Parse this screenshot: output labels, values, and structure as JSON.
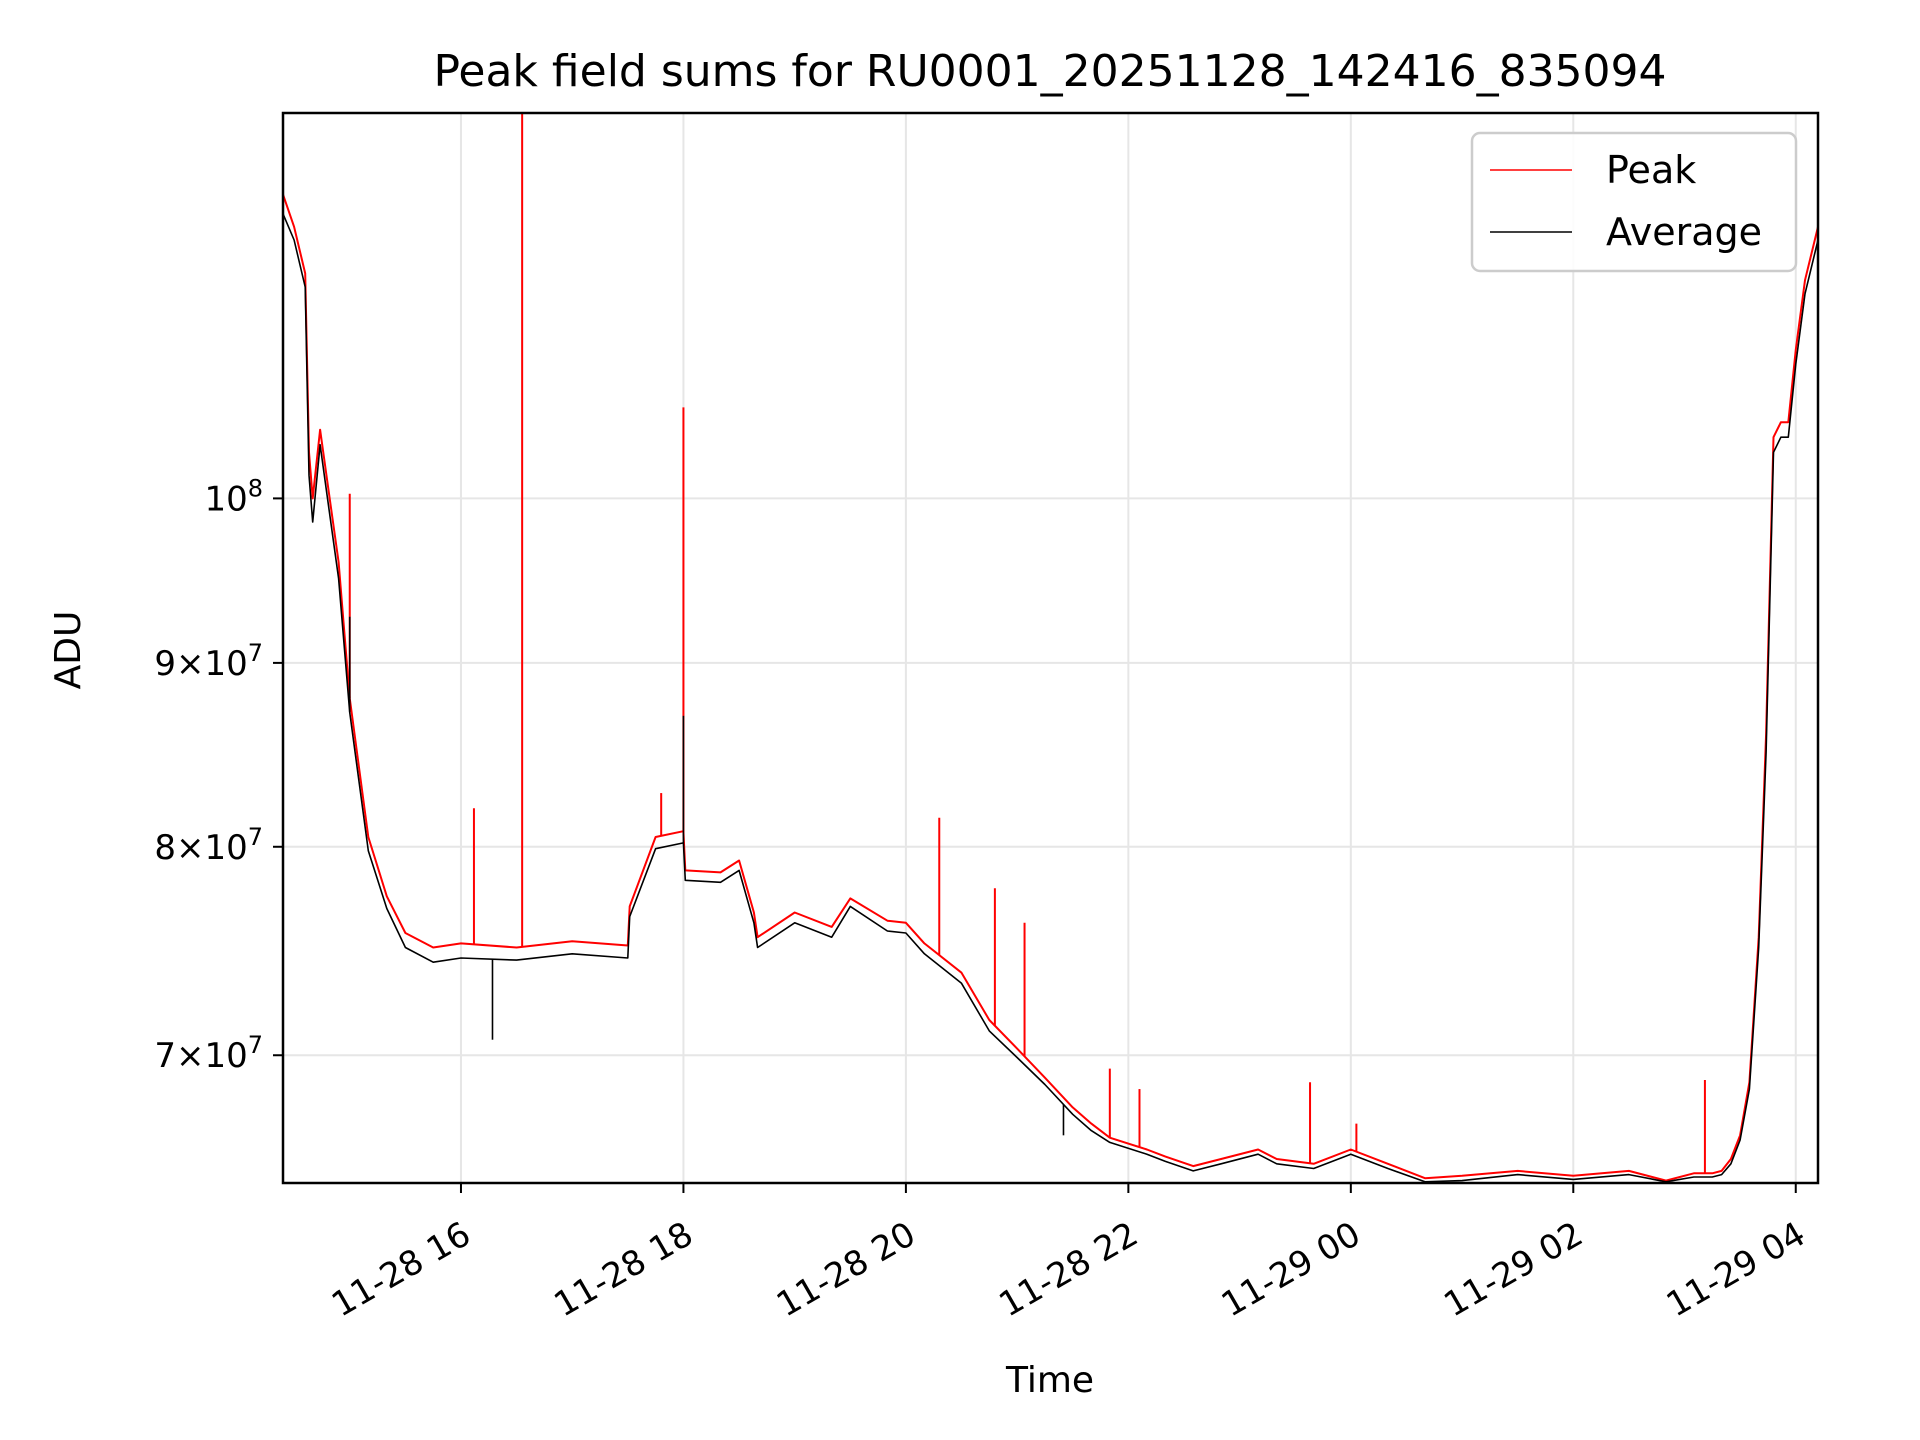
{
  "chart_data": {
    "type": "line",
    "title": "Peak field sums for RU0001_20251128_142416_835094",
    "xlabel": "Time",
    "ylabel": "ADU",
    "yscale": "log",
    "ylim": [
      64500000,
      128000000
    ],
    "xlim": [
      "2025-11-28 14:24",
      "2025-11-29 04:12"
    ],
    "x_ticks": [
      "2025-11-28 16:00",
      "2025-11-28 18:00",
      "2025-11-28 20:00",
      "2025-11-28 22:00",
      "2025-11-29 00:00",
      "2025-11-29 02:00",
      "2025-11-29 04:00"
    ],
    "x_tick_labels": [
      "11-28 16",
      "11-28 18",
      "11-28 20",
      "11-28 22",
      "11-29 00",
      "11-29 02",
      "11-29 04"
    ],
    "y_ticks": [
      {
        "value": 70000000,
        "mantissa": "7",
        "exp": "7"
      },
      {
        "value": 80000000,
        "mantissa": "8",
        "exp": "7"
      },
      {
        "value": 90000000,
        "mantissa": "9",
        "exp": "7"
      },
      {
        "value": 100000000,
        "mantissa": "",
        "exp": "8"
      }
    ],
    "grid": true,
    "legend_position": "top-right",
    "series": [
      {
        "name": "Peak",
        "color": "#ff0000",
        "x": [
          "2025-11-28 14:24",
          "2025-11-28 14:30",
          "2025-11-28 14:36",
          "2025-11-28 14:38",
          "2025-11-28 14:40",
          "2025-11-28 14:44",
          "2025-11-28 14:48",
          "2025-11-28 14:54",
          "2025-11-28 15:00",
          "2025-11-28 15:10",
          "2025-11-28 15:20",
          "2025-11-28 15:30",
          "2025-11-28 15:45",
          "2025-11-28 16:00",
          "2025-11-28 16:30",
          "2025-11-28 17:00",
          "2025-11-28 17:30",
          "2025-11-28 17:31",
          "2025-11-28 17:45",
          "2025-11-28 18:00",
          "2025-11-28 18:01",
          "2025-11-28 18:20",
          "2025-11-28 18:30",
          "2025-11-28 18:38",
          "2025-11-28 18:40",
          "2025-11-28 19:00",
          "2025-11-28 19:20",
          "2025-11-28 19:30",
          "2025-11-28 19:50",
          "2025-11-28 20:00",
          "2025-11-28 20:10",
          "2025-11-28 20:30",
          "2025-11-28 20:45",
          "2025-11-28 21:00",
          "2025-11-28 21:15",
          "2025-11-28 21:30",
          "2025-11-28 21:40",
          "2025-11-28 21:50",
          "2025-11-28 22:10",
          "2025-11-28 22:20",
          "2025-11-28 22:35",
          "2025-11-28 22:50",
          "2025-11-28 23:10",
          "2025-11-28 23:20",
          "2025-11-28 23:40",
          "2025-11-29 00:00",
          "2025-11-29 00:20",
          "2025-11-29 00:40",
          "2025-11-29 01:00",
          "2025-11-29 01:30",
          "2025-11-29 02:00",
          "2025-11-29 02:30",
          "2025-11-29 02:50",
          "2025-11-29 03:05",
          "2025-11-29 03:15",
          "2025-11-29 03:20",
          "2025-11-29 03:25",
          "2025-11-29 03:30",
          "2025-11-29 03:35",
          "2025-11-29 03:40",
          "2025-11-29 03:44",
          "2025-11-29 03:48",
          "2025-11-29 03:52",
          "2025-11-29 03:56",
          "2025-11-29 04:00",
          "2025-11-29 04:05",
          "2025-11-29 04:12"
        ],
        "y": [
          121500000,
          119000000,
          115500000,
          103000000,
          100000000,
          104500000,
          101000000,
          96000000,
          88000000,
          80500000,
          77500000,
          75700000,
          75000000,
          75200000,
          75000000,
          75300000,
          75100000,
          77000000,
          80500000,
          80800000,
          78800000,
          78700000,
          79300000,
          76700000,
          75500000,
          76700000,
          76000000,
          77400000,
          76300000,
          76200000,
          75200000,
          73800000,
          71600000,
          70300000,
          69000000,
          67700000,
          67000000,
          66400000,
          65900000,
          65600000,
          65200000,
          65500000,
          65900000,
          65500000,
          65300000,
          65900000,
          65300000,
          64700000,
          64800000,
          65000000,
          64800000,
          65000000,
          64600000,
          64900000,
          64900000,
          65000000,
          65500000,
          66500000,
          68800000,
          75500000,
          86000000,
          104000000,
          105000000,
          105000000,
          110000000,
          115000000,
          119000000
        ],
        "spikes": [
          {
            "x": "2025-11-28 16:33",
            "y": 128000000
          },
          {
            "x": "2025-11-28 18:00",
            "y": 106000000
          },
          {
            "x": "2025-11-28 15:00",
            "y": 100300000
          },
          {
            "x": "2025-11-28 16:07",
            "y": 82000000
          },
          {
            "x": "2025-11-28 17:48",
            "y": 82800000
          },
          {
            "x": "2025-11-28 20:18",
            "y": 81500000
          },
          {
            "x": "2025-11-28 20:48",
            "y": 77900000
          },
          {
            "x": "2025-11-28 21:04",
            "y": 76200000
          },
          {
            "x": "2025-11-28 21:50",
            "y": 69400000
          },
          {
            "x": "2025-11-28 22:06",
            "y": 68500000
          },
          {
            "x": "2025-11-28 23:38",
            "y": 68800000
          },
          {
            "x": "2025-11-29 00:03",
            "y": 67000000
          },
          {
            "x": "2025-11-29 03:11",
            "y": 68900000
          }
        ]
      },
      {
        "name": "Average",
        "color": "#000000",
        "x": [
          "2025-11-28 14:24",
          "2025-11-28 14:30",
          "2025-11-28 14:36",
          "2025-11-28 14:38",
          "2025-11-28 14:40",
          "2025-11-28 14:44",
          "2025-11-28 14:48",
          "2025-11-28 14:54",
          "2025-11-28 15:00",
          "2025-11-28 15:10",
          "2025-11-28 15:20",
          "2025-11-28 15:30",
          "2025-11-28 15:45",
          "2025-11-28 16:00",
          "2025-11-28 16:30",
          "2025-11-28 17:00",
          "2025-11-28 17:30",
          "2025-11-28 17:31",
          "2025-11-28 17:45",
          "2025-11-28 18:00",
          "2025-11-28 18:01",
          "2025-11-28 18:20",
          "2025-11-28 18:30",
          "2025-11-28 18:38",
          "2025-11-28 18:40",
          "2025-11-28 19:00",
          "2025-11-28 19:20",
          "2025-11-28 19:30",
          "2025-11-28 19:50",
          "2025-11-28 20:00",
          "2025-11-28 20:10",
          "2025-11-28 20:30",
          "2025-11-28 20:45",
          "2025-11-28 21:00",
          "2025-11-28 21:15",
          "2025-11-28 21:30",
          "2025-11-28 21:40",
          "2025-11-28 21:50",
          "2025-11-28 22:10",
          "2025-11-28 22:20",
          "2025-11-28 22:35",
          "2025-11-28 22:50",
          "2025-11-28 23:10",
          "2025-11-28 23:20",
          "2025-11-28 23:40",
          "2025-11-29 00:00",
          "2025-11-29 00:20",
          "2025-11-29 00:40",
          "2025-11-29 01:00",
          "2025-11-29 01:30",
          "2025-11-29 02:00",
          "2025-11-29 02:30",
          "2025-11-29 02:50",
          "2025-11-29 03:05",
          "2025-11-29 03:15",
          "2025-11-29 03:20",
          "2025-11-29 03:25",
          "2025-11-29 03:30",
          "2025-11-29 03:35",
          "2025-11-29 03:40",
          "2025-11-29 03:44",
          "2025-11-29 03:48",
          "2025-11-29 03:52",
          "2025-11-29 03:56",
          "2025-11-29 04:00",
          "2025-11-29 04:05",
          "2025-11-29 04:12"
        ],
        "y": [
          120000000,
          118000000,
          114500000,
          101500000,
          98500000,
          103500000,
          100000000,
          95000000,
          87200000,
          79800000,
          76900000,
          75000000,
          74300000,
          74500000,
          74400000,
          74700000,
          74500000,
          76500000,
          79900000,
          80200000,
          78300000,
          78200000,
          78800000,
          76200000,
          75000000,
          76200000,
          75500000,
          77000000,
          75800000,
          75700000,
          74700000,
          73300000,
          71100000,
          69900000,
          68700000,
          67400000,
          66700000,
          66200000,
          65700000,
          65400000,
          65000000,
          65300000,
          65700000,
          65300000,
          65100000,
          65700000,
          65100000,
          64550000,
          64600000,
          64850000,
          64650000,
          64850000,
          64550000,
          64750000,
          64750000,
          64850000,
          65300000,
          66300000,
          68500000,
          75000000,
          85000000,
          103000000,
          104000000,
          104000000,
          109000000,
          114000000,
          118000000
        ],
        "spikes": [
          {
            "x": "2025-11-28 15:00",
            "y": 92700000
          },
          {
            "x": "2025-11-28 18:00",
            "y": 87000000
          },
          {
            "x": "2025-11-28 16:17",
            "y": 70700000
          },
          {
            "x": "2025-11-28 21:25",
            "y": 66500000
          }
        ]
      }
    ]
  }
}
